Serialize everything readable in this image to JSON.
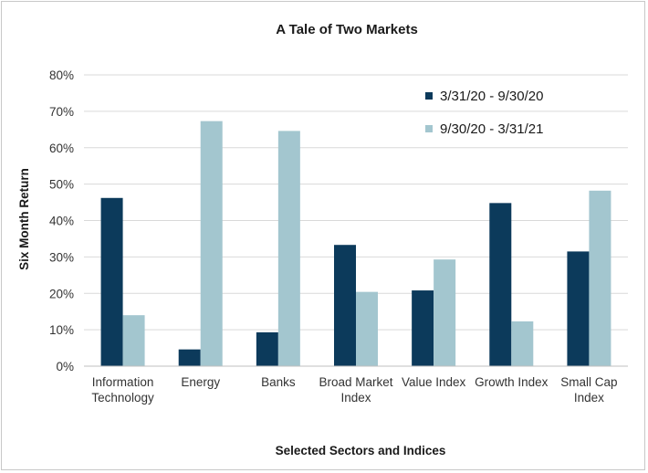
{
  "chart_data": {
    "type": "bar",
    "title": "A Tale of Two Markets",
    "xlabel": "Selected Sectors and Indices",
    "ylabel": "Six Month Return",
    "ylim": [
      0,
      80
    ],
    "yticks": [
      "0%",
      "10%",
      "20%",
      "30%",
      "40%",
      "50%",
      "60%",
      "70%",
      "80%"
    ],
    "grid": true,
    "legend_position": "top-right",
    "categories": [
      [
        "Information",
        "Technology"
      ],
      [
        "Energy"
      ],
      [
        "Banks"
      ],
      [
        "Broad Market",
        "Index"
      ],
      [
        "Value Index"
      ],
      [
        "Growth Index"
      ],
      [
        "Small Cap",
        "Index"
      ]
    ],
    "series": [
      {
        "name": "3/31/20 - 9/30/20",
        "color": "#0c3a5b",
        "values": [
          46.2,
          4.6,
          9.3,
          33.3,
          20.8,
          44.8,
          31.5
        ]
      },
      {
        "name": "9/30/20 - 3/31/21",
        "color": "#a3c6cf",
        "values": [
          14.0,
          67.3,
          64.6,
          20.4,
          29.3,
          12.3,
          48.2
        ]
      }
    ]
  }
}
